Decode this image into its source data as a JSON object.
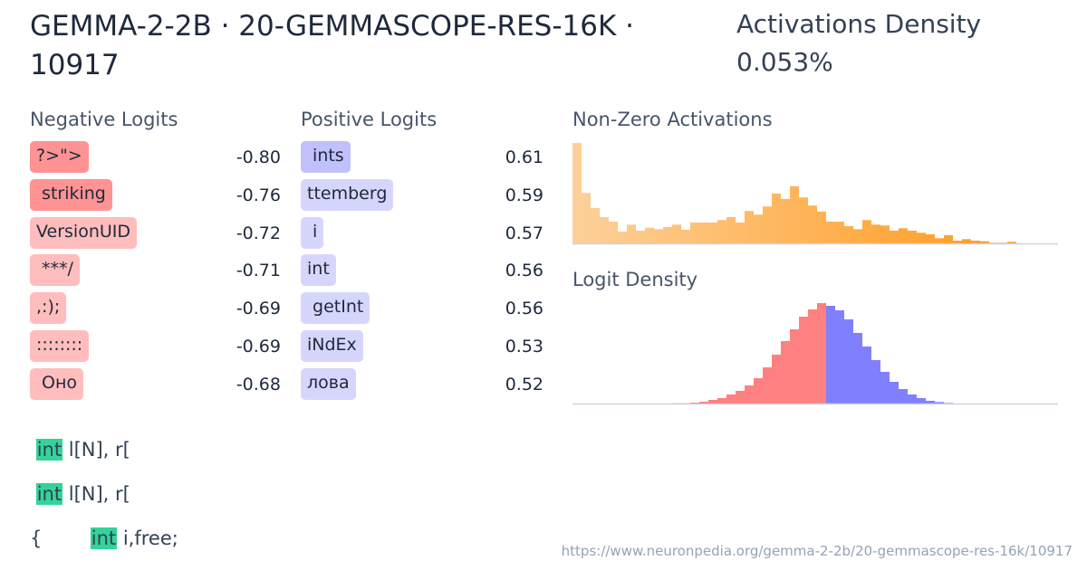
{
  "title": "GEMMA-2-2B · 20-GEMMASCOPE-RES-16K · 10917",
  "activations_density": {
    "label": "Activations Density",
    "value": "0.053%"
  },
  "negative_logits": {
    "heading": "Negative Logits",
    "items": [
      {
        "token": "?>\">",
        "value": "-0.80",
        "color": "#ff9393"
      },
      {
        "token": " striking",
        "value": "-0.76",
        "color": "#ff9393"
      },
      {
        "token": "VersionUID",
        "value": "-0.72",
        "color": "#ffbdbd"
      },
      {
        "token": " ***/",
        "value": "-0.71",
        "color": "#ffbdbd"
      },
      {
        "token": ",:);",
        "value": "-0.69",
        "color": "#ffbdbd"
      },
      {
        "token": "::::::::",
        "value": "-0.69",
        "color": "#ffbdbd"
      },
      {
        "token": " Оно",
        "value": "-0.68",
        "color": "#ffbdbd"
      }
    ]
  },
  "positive_logits": {
    "heading": "Positive Logits",
    "items": [
      {
        "token": " ints",
        "value": "0.61",
        "color": "#c0c0fd"
      },
      {
        "token": "ttemberg",
        "value": "0.59",
        "color": "#d6d6fd"
      },
      {
        "token": " i",
        "value": "0.57",
        "color": "#d6d6fd"
      },
      {
        "token": "int",
        "value": "0.56",
        "color": "#d6d6fd"
      },
      {
        "token": " getInt",
        "value": "0.56",
        "color": "#d6d6fd"
      },
      {
        "token": "iNdEx",
        "value": "0.53",
        "color": "#d6d6fd"
      },
      {
        "token": "лова",
        "value": "0.52",
        "color": "#d6d6fd"
      }
    ]
  },
  "chart_data": [
    {
      "type": "bar",
      "title": "Non-Zero Activations",
      "colors": [
        "#fdd09a",
        "#ff9a1a"
      ],
      "values": [
        332,
        167,
        117,
        87,
        72,
        39,
        62,
        42,
        52,
        47,
        54,
        62,
        45,
        69,
        69,
        69,
        77,
        87,
        69,
        107,
        95,
        122,
        165,
        147,
        189,
        152,
        125,
        105,
        72,
        72,
        57,
        47,
        77,
        62,
        59,
        42,
        50,
        42,
        35,
        30,
        17,
        27,
        9,
        14,
        9,
        7,
        2,
        2,
        5
      ]
    },
    {
      "type": "bar",
      "title": "Logit Density",
      "colors": {
        "negative": "#ff8080",
        "positive": "#8080ff"
      },
      "negative_values": [
        0,
        0,
        0,
        0,
        0,
        0,
        0,
        0,
        0,
        0,
        0,
        1,
        1,
        3,
        6,
        12,
        18,
        30,
        42,
        60,
        84,
        120,
        162,
        207,
        246,
        288,
        312,
        333
      ],
      "positive_values": [
        324,
        309,
        279,
        234,
        189,
        144,
        105,
        72,
        48,
        30,
        18,
        9,
        5,
        2
      ]
    }
  ],
  "examples": [
    {
      "before": " ",
      "highlight": "int",
      "after": " l[N], r["
    },
    {
      "before": " ",
      "highlight": "int",
      "after": " l[N], r["
    },
    {
      "before": "{        ",
      "highlight": "int",
      "after": " i,free;"
    }
  ],
  "highlight_color": "#34d399",
  "url": "https://www.neuronpedia.org/gemma-2-2b/20-gemmascope-res-16k/10917"
}
